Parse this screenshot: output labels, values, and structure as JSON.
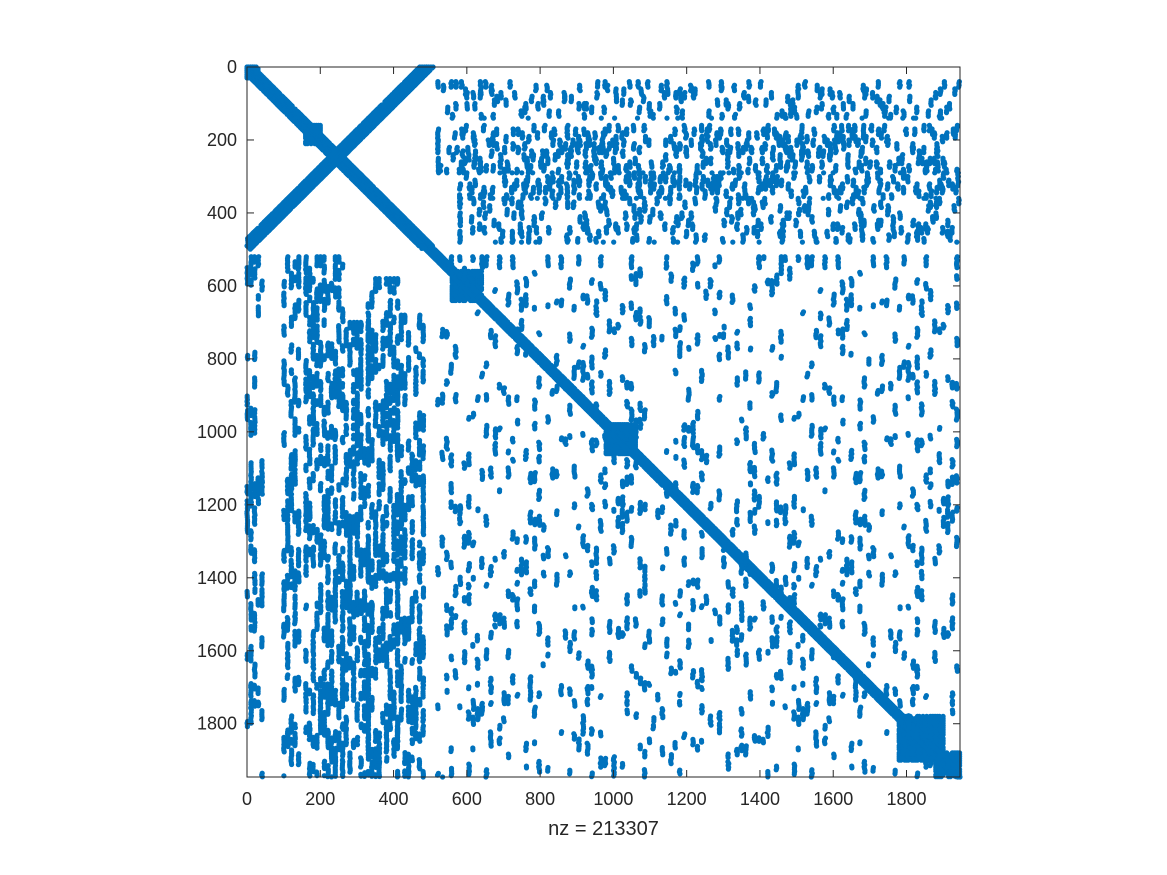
{
  "chart_data": {
    "type": "scatter",
    "title": "",
    "xlabel": "nz = 213307",
    "ylabel": "",
    "nz": 213307,
    "xlim": [
      0,
      1946
    ],
    "ylim": [
      0,
      1946
    ],
    "y_reversed": true,
    "xticks": [
      0,
      200,
      400,
      600,
      800,
      1000,
      1200,
      1400,
      1600,
      1800
    ],
    "yticks": [
      0,
      200,
      400,
      600,
      800,
      1000,
      1200,
      1400,
      1600,
      1800
    ],
    "grid": false,
    "marker_color": "#0072BD",
    "series": [
      {
        "dense_blocks": [
          {
            "x": [
              0,
              30
            ],
            "y": [
              0,
              30
            ]
          },
          {
            "x": [
              160,
              200
            ],
            "y": [
              160,
              210
            ]
          },
          {
            "x": [
              560,
              640
            ],
            "y": [
              560,
              640
            ]
          },
          {
            "x": [
              980,
              1060
            ],
            "y": [
              980,
              1060
            ]
          },
          {
            "x": [
              1780,
              1900
            ],
            "y": [
              1780,
              1900
            ]
          },
          {
            "x": [
              1880,
              1946
            ],
            "y": [
              1880,
              1946
            ]
          }
        ],
        "diagonal_bands": [
          {
            "from": [
              0,
              0
            ],
            "to": [
              490,
              490
            ],
            "width": 20
          },
          {
            "from": [
              0,
              490
            ],
            "to": [
              490,
              0
            ],
            "width": 18
          },
          {
            "from": [
              490,
              490
            ],
            "to": [
              1946,
              1946
            ],
            "width": 12
          }
        ],
        "column_bands": [
          {
            "x": [
              0,
              40
            ],
            "y": [
              520,
              1946
            ],
            "density": 0.35
          },
          {
            "x": [
              100,
              140
            ],
            "y": [
              520,
              1946
            ],
            "density": 0.4
          },
          {
            "x": [
              160,
              260
            ],
            "y": [
              520,
              1946
            ],
            "density": 0.45
          },
          {
            "x": [
              270,
              330
            ],
            "y": [
              700,
              1946
            ],
            "density": 0.5
          },
          {
            "x": [
              330,
              410
            ],
            "y": [
              580,
              1946
            ],
            "density": 0.55
          },
          {
            "x": [
              410,
              480
            ],
            "y": [
              680,
              1946
            ],
            "density": 0.45
          }
        ],
        "row_bands": [
          {
            "x": [
              520,
              1946
            ],
            "y": [
              40,
              140
            ],
            "density": 0.3
          },
          {
            "x": [
              520,
              1946
            ],
            "y": [
              160,
              290
            ],
            "density": 0.45
          },
          {
            "x": [
              580,
              1946
            ],
            "y": [
              290,
              360
            ],
            "density": 0.45
          },
          {
            "x": [
              580,
              1946
            ],
            "y": [
              360,
              480
            ],
            "density": 0.3
          }
        ],
        "scatter_region": {
          "x": [
            520,
            1946
          ],
          "y": [
            520,
            1946
          ],
          "density": 0.18
        }
      }
    ]
  }
}
